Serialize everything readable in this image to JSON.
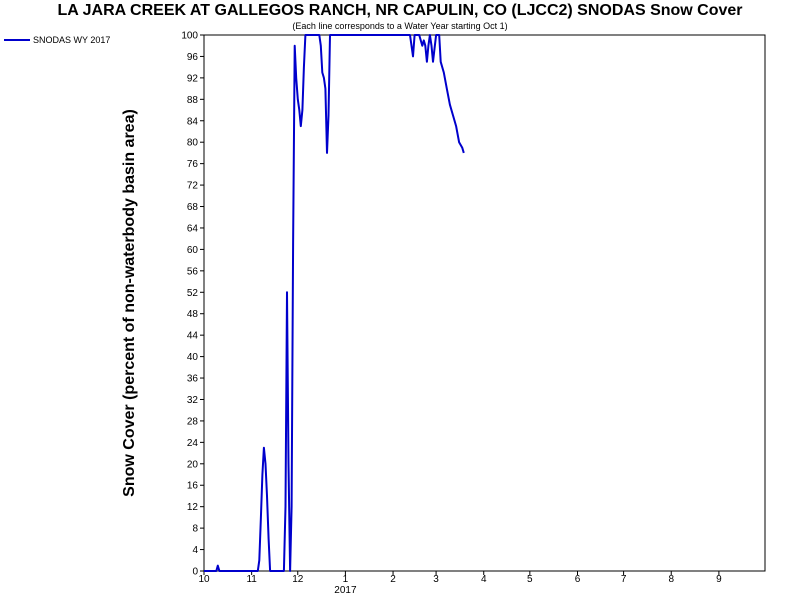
{
  "chart_data": {
    "type": "line",
    "title": "LA JARA CREEK AT GALLEGOS RANCH, NR CAPULIN, CO (LJCC2) SNODAS Snow Cover",
    "subtitle": "(Each line corresponds to a Water Year starting Oct 1)",
    "ylabel": "Snow Cover (percent of non-waterbody basin area)",
    "xlabel": "",
    "ylim": [
      0,
      100
    ],
    "y_ticks": [
      "0",
      "4",
      "8",
      "12",
      "16",
      "20",
      "24",
      "28",
      "32",
      "36",
      "40",
      "44",
      "48",
      "52",
      "56",
      "60",
      "64",
      "68",
      "72",
      "76",
      "80",
      "84",
      "88",
      "92",
      "96",
      "100"
    ],
    "x_ticks": [
      "10",
      "11",
      "12",
      "1",
      "2",
      "3",
      "4",
      "5",
      "6",
      "7",
      "8",
      "9"
    ],
    "x_year_label": "2017",
    "grid": false,
    "legend_placement": "top-left",
    "series": [
      {
        "name": "SNODAS WY 2017",
        "color": "#0000cc",
        "x": [
          "2016-10-01",
          "2016-10-09",
          "2016-10-10",
          "2016-10-11",
          "2016-10-20",
          "2016-10-31",
          "2016-11-05",
          "2016-11-06",
          "2016-11-07",
          "2016-11-08",
          "2016-11-09",
          "2016-11-10",
          "2016-11-11",
          "2016-11-12",
          "2016-11-13",
          "2016-11-15",
          "2016-11-20",
          "2016-11-22",
          "2016-11-23",
          "2016-11-24",
          "2016-11-25",
          "2016-11-26",
          "2016-11-27",
          "2016-11-28",
          "2016-11-29",
          "2016-11-30",
          "2016-12-01",
          "2016-12-02",
          "2016-12-03",
          "2016-12-04",
          "2016-12-05",
          "2016-12-06",
          "2016-12-07",
          "2016-12-08",
          "2016-12-09",
          "2016-12-10",
          "2016-12-11",
          "2016-12-12",
          "2016-12-14",
          "2016-12-15",
          "2016-12-16",
          "2016-12-17",
          "2016-12-18",
          "2016-12-19",
          "2016-12-20",
          "2016-12-21",
          "2016-12-22",
          "2016-12-23",
          "2017-01-01",
          "2017-02-12",
          "2017-02-14",
          "2017-02-15",
          "2017-02-18",
          "2017-02-20",
          "2017-02-21",
          "2017-02-22",
          "2017-02-23",
          "2017-02-24",
          "2017-02-25",
          "2017-02-26",
          "2017-02-27",
          "2017-03-01",
          "2017-03-02",
          "2017-03-03",
          "2017-03-04",
          "2017-03-06",
          "2017-03-08",
          "2017-03-10",
          "2017-03-12",
          "2017-03-14",
          "2017-03-16",
          "2017-03-18",
          "2017-03-19"
        ],
        "values": [
          0,
          0,
          1,
          0,
          0,
          0,
          0,
          2,
          10,
          18,
          23,
          20,
          14,
          6,
          0,
          0,
          0,
          0,
          12,
          52,
          20,
          0,
          12,
          61,
          98,
          92,
          88,
          86,
          83,
          86,
          94,
          100,
          100,
          100,
          100,
          100,
          100,
          100,
          100,
          100,
          98,
          93,
          92,
          90,
          78,
          85,
          100,
          100,
          100,
          100,
          96,
          100,
          100,
          98,
          99,
          98,
          95,
          98,
          100,
          98,
          95,
          100,
          100,
          100,
          95,
          93,
          90,
          87,
          85,
          83,
          80,
          79,
          78
        ]
      }
    ]
  }
}
